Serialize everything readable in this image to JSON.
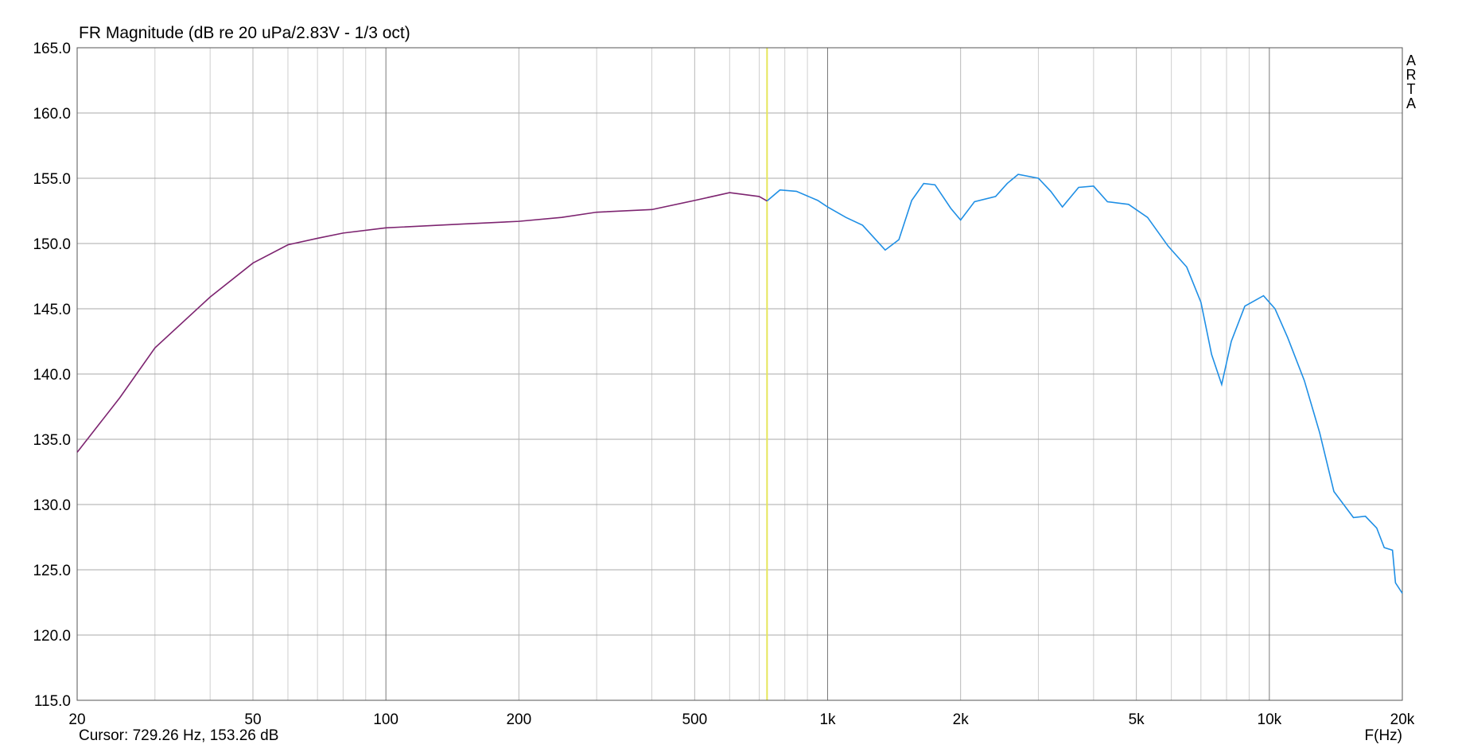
{
  "chart_data": {
    "type": "line",
    "title": "FR Magnitude (dB re 20 uPa/2.83V - 1/3 oct)",
    "x_label": "F(Hz)",
    "watermark": "ARTA",
    "cursor": {
      "label": "Cursor: 729.26 Hz, 153.26 dB",
      "x": 729.26,
      "color": "#e6e65a"
    },
    "x_scale": "log",
    "grid": true,
    "xlim": [
      20,
      20000
    ],
    "ylim": [
      115,
      165
    ],
    "xticks": [
      20,
      50,
      100,
      200,
      500,
      {
        "value": 1000,
        "label": "1k"
      },
      {
        "value": 2000,
        "label": "2k"
      },
      {
        "value": 5000,
        "label": "5k"
      },
      {
        "value": 10000,
        "label": "10k"
      },
      {
        "value": 20000,
        "label": "20k"
      }
    ],
    "xminorticks": [
      30,
      40,
      60,
      70,
      80,
      90,
      300,
      400,
      600,
      700,
      800,
      900,
      3000,
      4000,
      6000,
      7000,
      8000,
      9000
    ],
    "yticks": [
      {
        "value": 115,
        "label": "115.0"
      },
      {
        "value": 120,
        "label": "120.0"
      },
      {
        "value": 125,
        "label": "125.0"
      },
      {
        "value": 130,
        "label": "130.0"
      },
      {
        "value": 135,
        "label": "135.0"
      },
      {
        "value": 140,
        "label": "140.0"
      },
      {
        "value": 145,
        "label": "145.0"
      },
      {
        "value": 150,
        "label": "150.0"
      },
      {
        "value": 155,
        "label": "155.0"
      },
      {
        "value": 160,
        "label": "160.0"
      },
      {
        "value": 165,
        "label": "165.0"
      }
    ],
    "series": [
      {
        "color": "#7d2470",
        "x": [
          20,
          25,
          30,
          40,
          50,
          60,
          70,
          80,
          100,
          150,
          200,
          250,
          300,
          400,
          500,
          600,
          700,
          729.26
        ],
        "values": [
          134.0,
          138.2,
          142.0,
          145.9,
          148.5,
          149.9,
          150.4,
          150.8,
          151.2,
          151.5,
          151.7,
          152.0,
          152.4,
          152.6,
          153.3,
          153.9,
          153.6,
          153.26
        ]
      },
      {
        "color": "#1f8fe5",
        "x": [
          729.26,
          780,
          850,
          950,
          1000,
          1100,
          1200,
          1350,
          1450,
          1550,
          1650,
          1750,
          1900,
          2000,
          2150,
          2400,
          2550,
          2700,
          3000,
          3200,
          3400,
          3700,
          4000,
          4300,
          4800,
          5300,
          5900,
          6500,
          7000,
          7400,
          7800,
          8200,
          8800,
          9700,
          10300,
          11000,
          12000,
          13000,
          14000,
          15500,
          16500,
          17500,
          18200,
          19000,
          19300,
          20000
        ],
        "values": [
          153.26,
          154.1,
          154.0,
          153.3,
          152.8,
          152.0,
          151.4,
          149.5,
          150.3,
          153.3,
          154.6,
          154.5,
          152.7,
          151.8,
          153.2,
          153.6,
          154.6,
          155.3,
          155.0,
          154.0,
          152.8,
          154.3,
          154.4,
          153.2,
          153.0,
          152.0,
          149.8,
          148.2,
          145.5,
          141.5,
          139.2,
          142.5,
          145.2,
          146.0,
          145.0,
          142.8,
          139.5,
          135.5,
          131.0,
          129.0,
          129.1,
          128.2,
          126.7,
          126.5,
          124.0,
          123.2
        ]
      }
    ]
  }
}
